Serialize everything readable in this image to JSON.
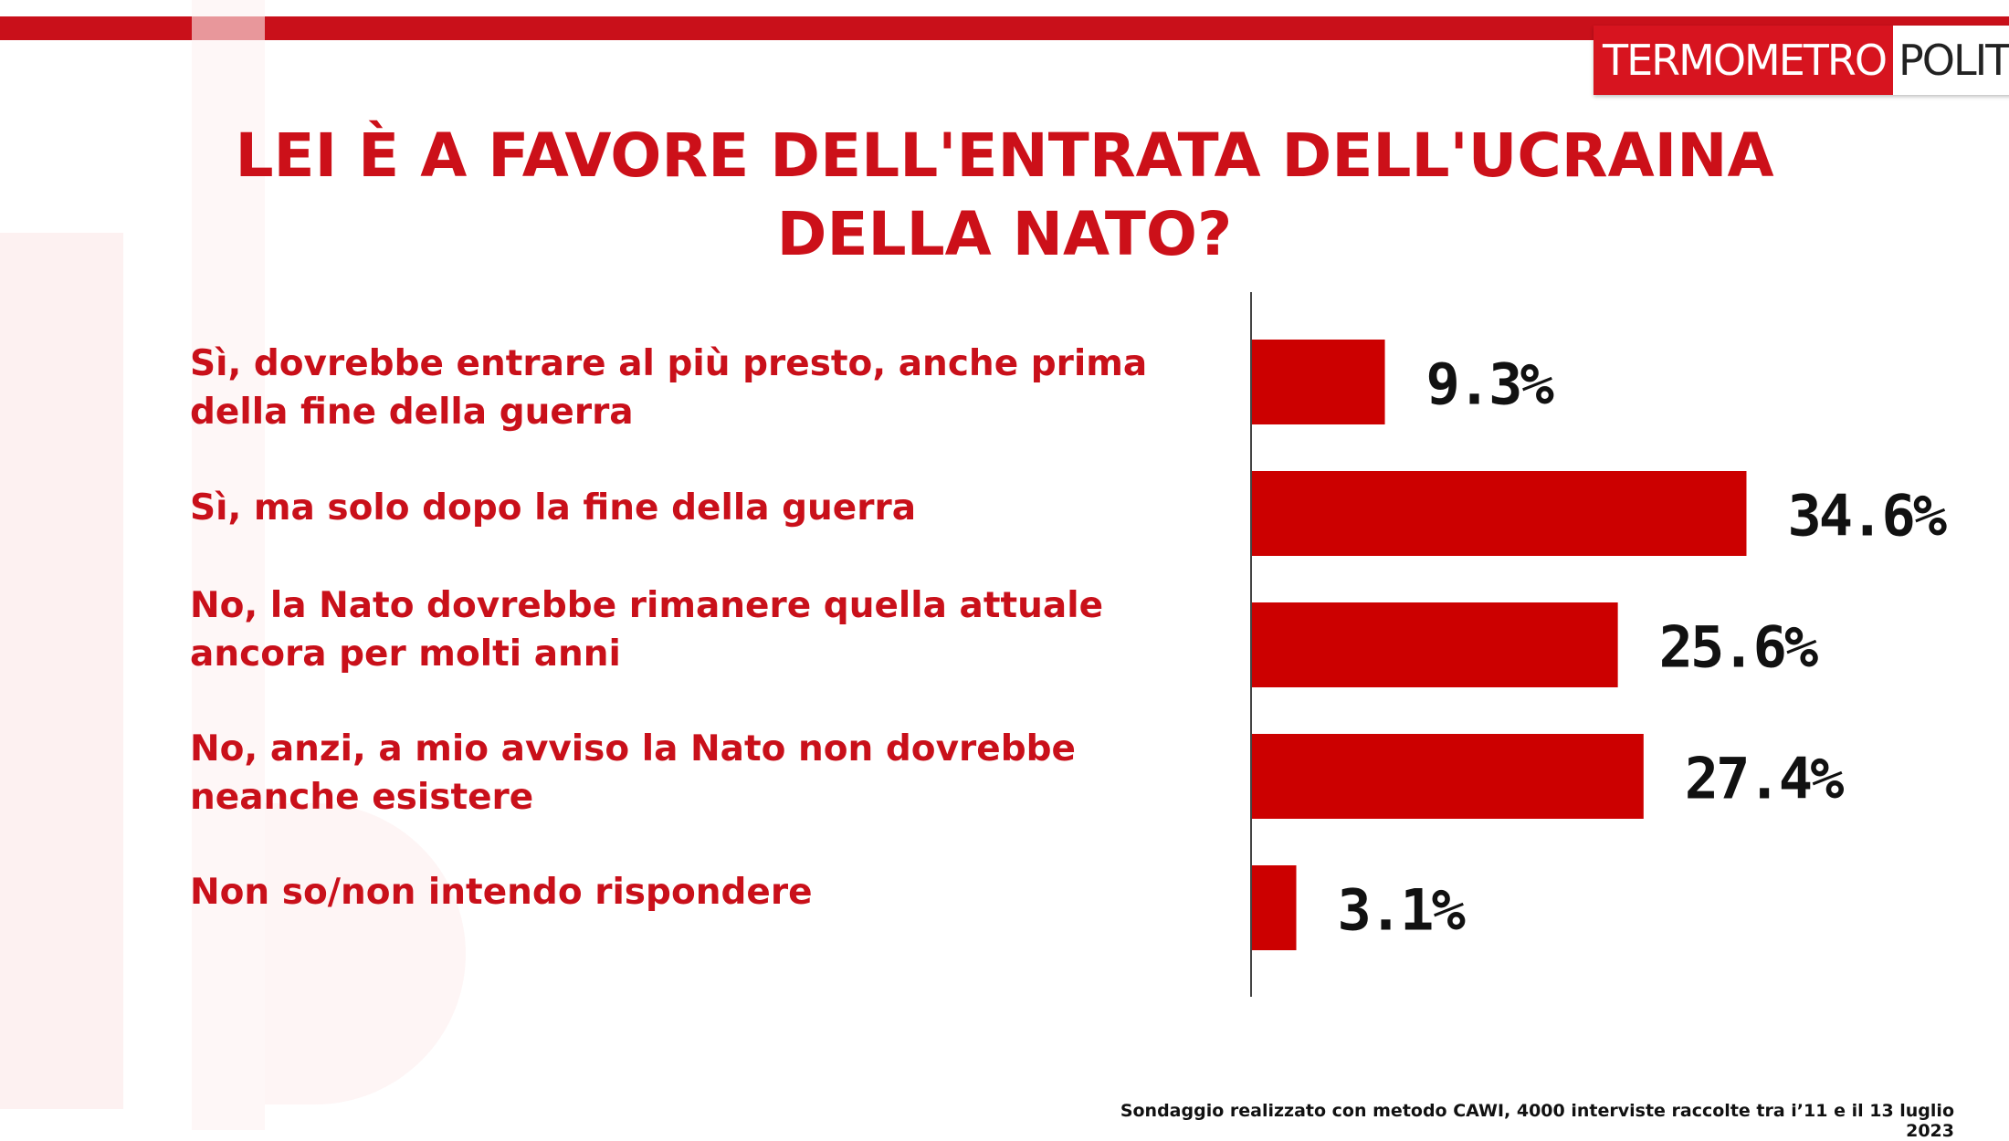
{
  "brand": {
    "part1": "TERMOMETRO",
    "part2": "POLITICO",
    "red": "#d7141f"
  },
  "title_line1": "LEI È A FAVORE DELL'ENTRATA DELL'UCRAINA",
  "title_line2": "DELLA NATO?",
  "footnote": "Sondaggio realizzato con metodo CAWI, 4000 interviste raccolte tra i’11 e il 13 luglio 2023",
  "chart_data": {
    "type": "bar",
    "orientation": "horizontal",
    "categories": [
      [
        "Sì, dovrebbe entrare al più presto, anche prima",
        "della fine della guerra"
      ],
      [
        "Sì, ma solo dopo la fine della guerra"
      ],
      [
        "No, la Nato dovrebbe rimanere quella attuale",
        "ancora per molti anni"
      ],
      [
        "No, anzi, a mio avviso la Nato non dovrebbe",
        "neanche esistere"
      ],
      [
        "Non so/non intendo rispondere"
      ]
    ],
    "values": [
      9.3,
      34.6,
      25.6,
      27.4,
      3.1
    ],
    "value_labels": [
      "9.3%",
      "34.6%",
      "25.6%",
      "27.4%",
      "3.1%"
    ],
    "unit": "%",
    "bar_color": "#cc0000",
    "grid": false,
    "legend": "none"
  }
}
